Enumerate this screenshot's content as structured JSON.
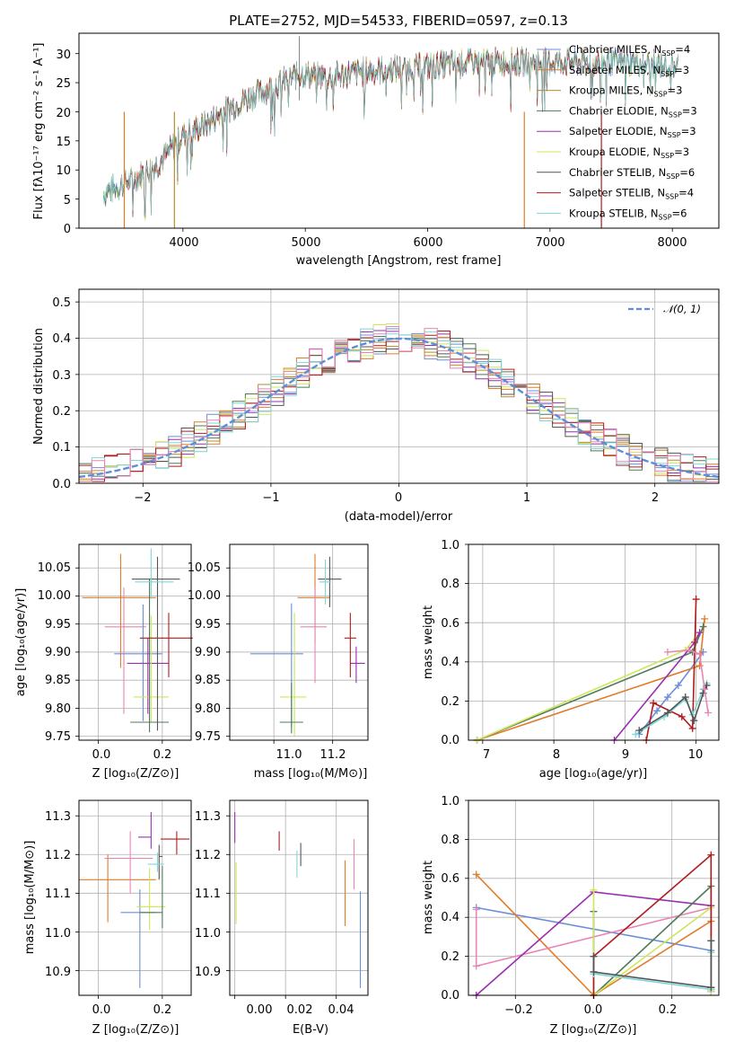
{
  "colors": {
    "chab_miles": "#6b8fd6",
    "salp_miles": "#e07b28",
    "krou_miles": "#b98a2a",
    "chab_elodie": "#4f7b57",
    "salp_elodie": "#9a2fb0",
    "krou_elodie": "#cfe55a",
    "chab_stelib": "#555555",
    "salp_stelib": "#b01c1c",
    "krou_stelib": "#7fd6d6",
    "pink": "#e884b6",
    "gauss": "#5b8fd9"
  },
  "panel1": {
    "title": "PLATE=2752, MJD=54533, FIBERID=0597, z=0.13",
    "xlabel": "wavelength [Angstrom, rest frame]",
    "ylabel": "Flux [fλ10⁻¹⁷ erg cm⁻² s⁻¹ A⁻¹]",
    "xticks": [
      "4000",
      "5000",
      "6000",
      "7000",
      "8000"
    ],
    "yticks": [
      "0",
      "5",
      "10",
      "15",
      "20",
      "25",
      "30"
    ]
  },
  "legend1": [
    {
      "base": "Chabrier MILES, N",
      "sub": "SSP",
      "tail": "=4"
    },
    {
      "base": "Salpeter MILES, N",
      "sub": "SSP",
      "tail": "=3"
    },
    {
      "base": "Kroupa MILES, N",
      "sub": "SSP",
      "tail": "=3"
    },
    {
      "base": "Chabrier ELODIE, N",
      "sub": "SSP",
      "tail": "=3"
    },
    {
      "base": "Salpeter ELODIE, N",
      "sub": "SSP",
      "tail": "=3"
    },
    {
      "base": "Kroupa ELODIE, N",
      "sub": "SSP",
      "tail": "=3"
    },
    {
      "base": "Chabrier STELIB, N",
      "sub": "SSP",
      "tail": "=6"
    },
    {
      "base": "Salpeter STELIB, N",
      "sub": "SSP",
      "tail": "=4"
    },
    {
      "base": "Kroupa STELIB, N",
      "sub": "SSP",
      "tail": "=6"
    }
  ],
  "panel2": {
    "xlabel": "(data-model)/error",
    "ylabel": "Normed distribution",
    "xticks": [
      "−2",
      "−1",
      "0",
      "1",
      "2"
    ],
    "yticks": [
      "0.0",
      "0.1",
      "0.2",
      "0.3",
      "0.4",
      "0.5"
    ],
    "legend": "𝒩(0, 1)"
  },
  "panel3": {
    "xlabel": "Z [log₁₀(Z/Z⊙)]",
    "ylabel": "age  [log₁₀(age/yr)]",
    "xticks": [
      "0.0",
      "0.2"
    ],
    "yticks": [
      "9.75",
      "9.80",
      "9.85",
      "9.90",
      "9.95",
      "10.00",
      "10.05"
    ]
  },
  "panel4": {
    "xlabel": "mass [log₁₀(M/M⊙)]",
    "xticks": [
      "11.0",
      "11.2"
    ],
    "yticks": [
      "9.75",
      "9.80",
      "9.85",
      "9.90",
      "9.95",
      "10.00",
      "10.05"
    ]
  },
  "panel5": {
    "xlabel": "age  [log₁₀(age/yr)]",
    "ylabel": "mass weight",
    "xticks": [
      "7",
      "8",
      "9",
      "10"
    ],
    "yticks": [
      "0.0",
      "0.2",
      "0.4",
      "0.6",
      "0.8",
      "1.0"
    ]
  },
  "panel6": {
    "xlabel": "Z [log₁₀(Z/Z⊙)]",
    "ylabel": "mass [log₁₀(M/M⊙)]",
    "xticks": [
      "0.0",
      "0.2"
    ],
    "yticks": [
      "10.9",
      "11.0",
      "11.1",
      "11.2",
      "11.3"
    ]
  },
  "panel7": {
    "xlabel": "E(B-V)",
    "xticks": [
      "0.00",
      "0.02",
      "0.04"
    ],
    "yticks": [
      "10.9",
      "11.0",
      "11.1",
      "11.2",
      "11.3"
    ]
  },
  "panel8": {
    "xlabel": "Z [log₁₀(Z/Z⊙)]",
    "ylabel": "mass weight",
    "xticks": [
      "−0.2",
      "0.0",
      "0.2"
    ],
    "yticks": [
      "0.0",
      "0.2",
      "0.4",
      "0.6",
      "0.8",
      "1.0"
    ]
  },
  "chart_data": [
    {
      "type": "line",
      "title": "PLATE=2752, MJD=54533, FIBERID=0597, z=0.13",
      "xlabel": "wavelength [Angstrom, rest frame]",
      "ylabel": "Flux [fλ10⁻¹⁷ erg cm⁻² s⁻¹ A⁻¹]",
      "xlim": [
        3150,
        8380
      ],
      "ylim": [
        0,
        33.5
      ],
      "envelope": {
        "x": [
          3350,
          3600,
          3800,
          4000,
          4200,
          4400,
          4700,
          4950,
          5200,
          5500,
          5800,
          6100,
          6400,
          6700,
          7000,
          7300,
          7600,
          7900,
          8050
        ],
        "y": [
          6,
          8.5,
          11,
          16,
          18,
          21,
          24,
          26.5,
          26,
          27,
          27.5,
          28,
          28.5,
          28.5,
          28.5,
          28.5,
          28.5,
          28,
          28
        ]
      },
      "dropouts": [
        {
          "x": 3520,
          "color": "salp_miles"
        },
        {
          "x": 3930,
          "color": "krou_miles"
        },
        {
          "x": 6790,
          "color": "salp_miles"
        },
        {
          "x": 7420,
          "color": "salp_stelib"
        }
      ],
      "legend_loc": "upper right"
    },
    {
      "type": "histogram",
      "xlabel": "(data-model)/error",
      "ylabel": "Normed distribution",
      "xlim": [
        -2.5,
        2.5
      ],
      "ylim": [
        0,
        0.535
      ],
      "bins": {
        "start": -2.5,
        "width": 0.1,
        "count": 50
      },
      "gaussian": {
        "mu": 0,
        "sigma": 1
      },
      "grid": true
    },
    {
      "type": "scatter",
      "xlabel": "Z [log₁₀(Z/Z⊙)]",
      "ylabel": "age  [log₁₀(age/yr)]",
      "xlim": [
        -0.06,
        0.29
      ],
      "ylim": [
        9.743,
        10.092
      ],
      "points": [
        {
          "color": "salp_miles",
          "x": 0.07,
          "y": 9.997,
          "xerr": [
            0.12,
            0.11
          ],
          "yerr": [
            0.125,
            0.078
          ]
        },
        {
          "color": "pink",
          "x": 0.08,
          "y": 9.945,
          "xerr": [
            0.06,
            0.07
          ],
          "yerr": [
            0.155,
            0.07
          ]
        },
        {
          "color": "chab_miles",
          "x": 0.14,
          "y": 9.897,
          "xerr": [
            0.09,
            0.06
          ],
          "yerr": [
            0.12,
            0.088
          ]
        },
        {
          "color": "salp_elodie",
          "x": 0.155,
          "y": 9.88,
          "xerr": [
            0.065,
            0.065
          ],
          "yerr": [
            0.09,
            0.045
          ]
        },
        {
          "color": "krou_elodie",
          "x": 0.165,
          "y": 9.82,
          "xerr": [
            0.055,
            0.055
          ],
          "yerr": [
            0.045,
            0.145
          ]
        },
        {
          "color": "chab_elodie",
          "x": 0.16,
          "y": 9.775,
          "xerr": [
            0.06,
            0.06
          ],
          "yerr": [
            0.018,
            0.255
          ]
        },
        {
          "color": "salp_stelib",
          "x": 0.22,
          "y": 9.925,
          "xerr": [
            0.09,
            0.075
          ],
          "yerr": [
            0.07,
            0.045
          ]
        },
        {
          "color": "chab_stelib",
          "x": 0.185,
          "y": 10.03,
          "xerr": [
            0.08,
            0.07
          ],
          "yerr": [
            0.27,
            0.04
          ]
        },
        {
          "color": "krou_stelib",
          "x": 0.165,
          "y": 10.025,
          "xerr": [
            0.05,
            0.07
          ],
          "yerr": [
            0.03,
            0.06
          ]
        }
      ]
    },
    {
      "type": "scatter",
      "xlabel": "mass [log₁₀(M/M⊙)]",
      "ylabel": "age  [log₁₀(age/yr)]",
      "xlim": [
        10.85,
        11.32
      ],
      "ylim": [
        9.743,
        10.092
      ],
      "points": [
        {
          "color": "salp_miles",
          "x": 11.14,
          "y": 9.997,
          "xerr": [
            0.06,
            0.05
          ],
          "yerr": [
            0.08,
            0.078
          ]
        },
        {
          "color": "chab_miles",
          "x": 11.06,
          "y": 9.897,
          "xerr": [
            0.14,
            0.04
          ],
          "yerr": [
            0.13,
            0.09
          ]
        },
        {
          "color": "pink",
          "x": 11.14,
          "y": 9.945,
          "xerr": [
            0.05,
            0.04
          ],
          "yerr": [
            0.1,
            0.07
          ]
        },
        {
          "color": "krou_elodie",
          "x": 11.07,
          "y": 9.82,
          "xerr": [
            0.05,
            0.04
          ],
          "yerr": [
            0.07,
            0.15
          ]
        },
        {
          "color": "chab_elodie",
          "x": 11.06,
          "y": 9.775,
          "xerr": [
            0.04,
            0.04
          ],
          "yerr": [
            0.02,
            0.07
          ]
        },
        {
          "color": "salp_elodie",
          "x": 11.28,
          "y": 9.88,
          "xerr": [
            0.02,
            0.03
          ],
          "yerr": [
            0.035,
            0.03
          ]
        },
        {
          "color": "salp_stelib",
          "x": 11.26,
          "y": 9.925,
          "xerr": [
            0.02,
            0.02
          ],
          "yerr": [
            0.07,
            0.045
          ]
        },
        {
          "color": "chab_stelib",
          "x": 11.19,
          "y": 10.03,
          "xerr": [
            0.04,
            0.04
          ],
          "yerr": [
            0.05,
            0.04
          ]
        },
        {
          "color": "krou_stelib",
          "x": 11.175,
          "y": 10.025,
          "xerr": [
            0.02,
            0.02
          ],
          "yerr": [
            0.04,
            0.04
          ]
        }
      ]
    },
    {
      "type": "line",
      "xlabel": "age  [log₁₀(age/yr)]",
      "ylabel": "mass weight",
      "xlim": [
        6.8,
        10.32
      ],
      "ylim": [
        0,
        1
      ],
      "grid": true,
      "series": [
        {
          "color": "chab_miles",
          "x": [
            9.2,
            9.45,
            9.6,
            9.75,
            10.1
          ],
          "y": [
            0.03,
            0.15,
            0.22,
            0.28,
            0.45
          ]
        },
        {
          "color": "salp_miles",
          "x": [
            6.92,
            10.05,
            10.12
          ],
          "y": [
            0.0,
            0.38,
            0.62
          ]
        },
        {
          "color": "chab_elodie",
          "x": [
            6.92,
            9.95,
            10.1
          ],
          "y": [
            0.0,
            0.45,
            0.58
          ]
        },
        {
          "color": "krou_elodie",
          "x": [
            6.92,
            9.85,
            10.05
          ],
          "y": [
            0.0,
            0.46,
            0.55
          ]
        },
        {
          "color": "salp_elodie",
          "x": [
            8.85,
            9.98,
            10.05
          ],
          "y": [
            0.0,
            0.5,
            0.55
          ]
        },
        {
          "color": "salp_stelib",
          "x": [
            9.3,
            9.4,
            9.8,
            9.95,
            10.0
          ],
          "y": [
            0.0,
            0.19,
            0.12,
            0.06,
            0.72
          ]
        },
        {
          "color": "krou_stelib",
          "x": [
            9.15,
            9.55,
            9.85,
            9.95,
            10.1,
            10.15
          ],
          "y": [
            0.03,
            0.12,
            0.21,
            0.13,
            0.26,
            0.29
          ]
        },
        {
          "color": "chab_stelib",
          "x": [
            9.2,
            9.6,
            9.85,
            9.97,
            10.1,
            10.15
          ],
          "y": [
            0.05,
            0.14,
            0.22,
            0.1,
            0.24,
            0.28
          ]
        },
        {
          "color": "pink",
          "x": [
            9.6,
            9.9,
            10.05,
            10.12,
            10.17
          ],
          "y": [
            0.45,
            0.46,
            0.44,
            0.26,
            0.14
          ]
        }
      ]
    },
    {
      "type": "scatter",
      "xlabel": "Z [log₁₀(Z/Z⊙)]",
      "ylabel": "mass [log₁₀(M/M⊙)]",
      "xlim": [
        -0.06,
        0.29
      ],
      "ylim": [
        10.836,
        11.34
      ],
      "points": [
        {
          "color": "salp_miles",
          "x": 0.03,
          "y": 11.135,
          "xerr": [
            0.09,
            0.15
          ],
          "yerr": [
            0.11,
            0.065
          ]
        },
        {
          "color": "pink",
          "x": 0.1,
          "y": 11.19,
          "xerr": [
            0.08,
            0.07
          ],
          "yerr": [
            0.09,
            0.07
          ]
        },
        {
          "color": "chab_miles",
          "x": 0.13,
          "y": 11.05,
          "xerr": [
            0.06,
            0.05
          ],
          "yerr": [
            0.195,
            0.06
          ]
        },
        {
          "color": "krou_elodie",
          "x": 0.16,
          "y": 11.065,
          "xerr": [
            0.04,
            0.05
          ],
          "yerr": [
            0.06,
            0.1
          ]
        },
        {
          "color": "chab_elodie",
          "x": 0.2,
          "y": 11.05,
          "xerr": [
            0.07,
            0.0
          ],
          "yerr": [
            0.04,
            0.12
          ]
        },
        {
          "color": "salp_elodie",
          "x": 0.165,
          "y": 11.245,
          "xerr": [
            0.04,
            0.0
          ],
          "yerr": [
            0.03,
            0.065
          ]
        },
        {
          "color": "salp_stelib",
          "x": 0.245,
          "y": 11.24,
          "xerr": [
            0.05,
            0.04
          ],
          "yerr": [
            0.04,
            0.02
          ]
        },
        {
          "color": "chab_stelib",
          "x": 0.19,
          "y": 11.195,
          "xerr": [
            0.0,
            0.01
          ],
          "yerr": [
            0.06,
            0.03
          ]
        },
        {
          "color": "krou_stelib",
          "x": 0.185,
          "y": 11.175,
          "xerr": [
            0.03,
            0.02
          ],
          "yerr": [
            0.02,
            0.03
          ]
        }
      ]
    },
    {
      "type": "scatter",
      "xlabel": "E(B-V)",
      "ylabel": "mass [log₁₀(M/M⊙)]",
      "xlim": [
        -0.002,
        0.0525
      ],
      "ylim": [
        10.836,
        11.34
      ],
      "points": [
        {
          "color": "salp_elodie",
          "x": 0.0,
          "y": 11.27,
          "yerr": [
            0.04,
            0.04
          ]
        },
        {
          "color": "krou_elodie",
          "x": 0.0005,
          "y": 11.1,
          "yerr": [
            0.08,
            0.08
          ]
        },
        {
          "color": "salp_stelib",
          "x": 0.0175,
          "y": 11.235,
          "yerr": [
            0.025,
            0.025
          ]
        },
        {
          "color": "krou_stelib",
          "x": 0.0245,
          "y": 11.175,
          "yerr": [
            0.035,
            0.035
          ]
        },
        {
          "color": "chab_stelib",
          "x": 0.026,
          "y": 11.2,
          "yerr": [
            0.03,
            0.03
          ]
        },
        {
          "color": "salp_miles",
          "x": 0.0435,
          "y": 11.1,
          "yerr": [
            0.085,
            0.085
          ]
        },
        {
          "color": "pink",
          "x": 0.047,
          "y": 11.175,
          "yerr": [
            0.065,
            0.065
          ]
        },
        {
          "color": "chab_miles",
          "x": 0.0495,
          "y": 10.98,
          "yerr": [
            0.125,
            0.125
          ]
        }
      ]
    },
    {
      "type": "line",
      "xlabel": "Z [log₁₀(Z/Z⊙)]",
      "ylabel": "mass weight",
      "xlim": [
        -0.32,
        0.32
      ],
      "ylim": [
        0,
        1
      ],
      "grid": true,
      "series": [
        {
          "color": "chab_miles",
          "x": [
            -0.3,
            0.3,
            0.3
          ],
          "y": [
            0.45,
            0.23,
            0.28
          ]
        },
        {
          "color": "salp_miles",
          "x": [
            -0.3,
            0.0,
            0.3,
            0.3
          ],
          "y": [
            0.62,
            0.0,
            0.38,
            0.03
          ]
        },
        {
          "color": "pink",
          "x": [
            -0.3,
            -0.3,
            0.3,
            0.3
          ],
          "y": [
            0.44,
            0.15,
            0.45,
            0.03
          ]
        },
        {
          "color": "salp_elodie",
          "x": [
            -0.3,
            0.0,
            0.3,
            0.3
          ],
          "y": [
            0.0,
            0.53,
            0.46,
            0.02
          ]
        },
        {
          "color": "chab_elodie",
          "x": [
            0.0,
            0.0,
            0.3,
            0.3
          ],
          "y": [
            0.43,
            0.0,
            0.56,
            0.03
          ]
        },
        {
          "color": "krou_elodie",
          "x": [
            0.0,
            0.0,
            0.3,
            0.3
          ],
          "y": [
            0.54,
            0.0,
            0.45,
            0.02
          ]
        },
        {
          "color": "salp_stelib",
          "x": [
            0.0,
            0.0,
            0.3,
            0.3
          ],
          "y": [
            0.0,
            0.2,
            0.72,
            0.04
          ]
        },
        {
          "color": "krou_stelib",
          "x": [
            0.0,
            0.0,
            0.3,
            0.3
          ],
          "y": [
            0.12,
            0.11,
            0.03,
            0.22
          ]
        },
        {
          "color": "chab_stelib",
          "x": [
            0.0,
            0.0,
            0.3,
            0.3
          ],
          "y": [
            0.2,
            0.12,
            0.04,
            0.28
          ]
        }
      ]
    }
  ]
}
